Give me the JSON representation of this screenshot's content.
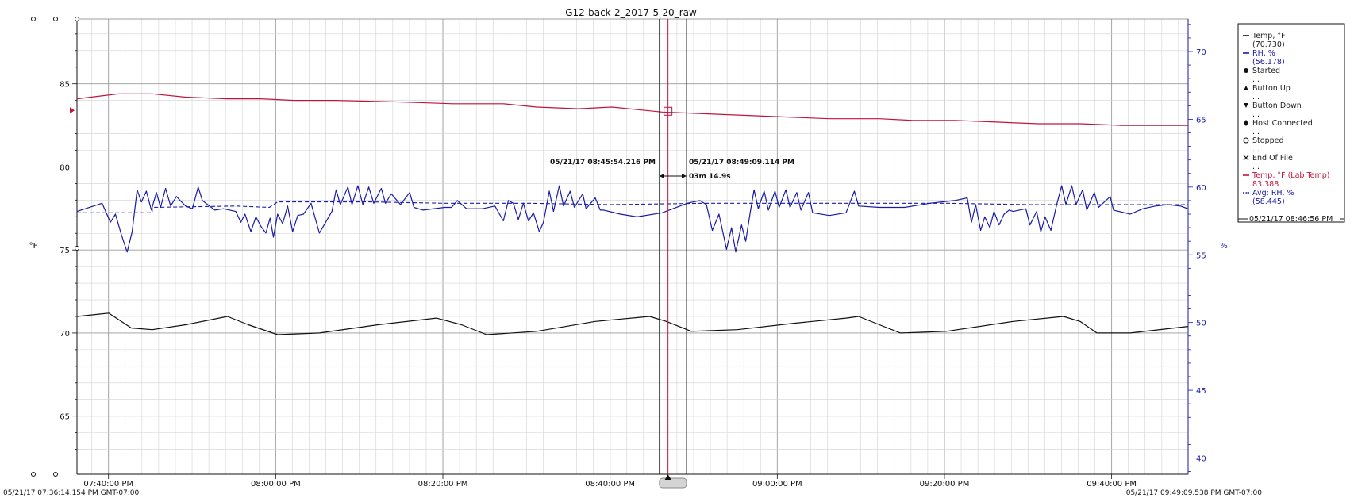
{
  "chart_data": {
    "type": "line",
    "title": "G12-back-2_2017-5-20_raw",
    "left_axis": {
      "label": "°F",
      "range": [
        61.5,
        88.9
      ],
      "ticks": [
        65,
        70,
        75,
        80,
        85
      ]
    },
    "right_axis": {
      "label": "%",
      "range": [
        38.8,
        72.4
      ],
      "ticks": [
        40,
        45,
        50,
        55,
        60,
        65,
        70
      ],
      "color": "#1a1aa8"
    },
    "time_axis": {
      "start_label": "05/21/17 07:36:14.154 PM GMT-07:00",
      "end_label": "05/21/17 09:49:09.538 PM GMT-07:00",
      "ticks": [
        {
          "t": 3.77,
          "label": "07:40:00 PM"
        },
        {
          "t": 23.77,
          "label": "08:00:00 PM"
        },
        {
          "t": 43.77,
          "label": "08:20:00 PM"
        },
        {
          "t": 63.77,
          "label": "08:40:00 PM"
        },
        {
          "t": 83.77,
          "label": "09:00:00 PM"
        },
        {
          "t": 103.77,
          "label": "09:20:00 PM"
        },
        {
          "t": 123.77,
          "label": "09:40:00 PM"
        }
      ],
      "duration_min": 132.92
    },
    "series": [
      {
        "name": "Temp, °F",
        "axis": "left",
        "color": "#111111",
        "points": [
          [
            0,
            71.0
          ],
          [
            3.8,
            71.2
          ],
          [
            6.5,
            70.3
          ],
          [
            9,
            70.2
          ],
          [
            13,
            70.5
          ],
          [
            18,
            71.0
          ],
          [
            20.5,
            70.5
          ],
          [
            24,
            69.9
          ],
          [
            29,
            70.0
          ],
          [
            36,
            70.5
          ],
          [
            43,
            70.9
          ],
          [
            46,
            70.5
          ],
          [
            49,
            69.9
          ],
          [
            55,
            70.1
          ],
          [
            62,
            70.7
          ],
          [
            68.5,
            71.0
          ],
          [
            70.5,
            70.7
          ],
          [
            73.5,
            70.1
          ],
          [
            79,
            70.2
          ],
          [
            86,
            70.6
          ],
          [
            92,
            70.9
          ],
          [
            93.5,
            71.0
          ],
          [
            96,
            70.5
          ],
          [
            98.5,
            70.0
          ],
          [
            104,
            70.1
          ],
          [
            112,
            70.7
          ],
          [
            118,
            71.0
          ],
          [
            120,
            70.7
          ],
          [
            122,
            70.0
          ],
          [
            126,
            70.0
          ],
          [
            132.9,
            70.4
          ]
        ]
      },
      {
        "name": "RH, %",
        "axis": "right",
        "color": "#1a1aa8",
        "points": [
          [
            0,
            58.2
          ],
          [
            3.0,
            58.8
          ],
          [
            4.0,
            57.4
          ],
          [
            4.6,
            58.0
          ],
          [
            5.3,
            56.5
          ],
          [
            6.0,
            55.2
          ],
          [
            6.6,
            56.7
          ],
          [
            7.2,
            59.8
          ],
          [
            7.7,
            58.9
          ],
          [
            8.3,
            59.7
          ],
          [
            8.9,
            58.3
          ],
          [
            9.5,
            59.6
          ],
          [
            10.0,
            58.5
          ],
          [
            10.6,
            59.9
          ],
          [
            11.2,
            58.6
          ],
          [
            11.9,
            59.3
          ],
          [
            12.5,
            58.9
          ],
          [
            13.0,
            58.6
          ],
          [
            13.8,
            58.4
          ],
          [
            14.5,
            60.0
          ],
          [
            15.0,
            59.0
          ],
          [
            16.5,
            58.3
          ],
          [
            17.5,
            58.4
          ],
          [
            19.0,
            58.2
          ],
          [
            19.6,
            57.4
          ],
          [
            20.1,
            58.0
          ],
          [
            20.8,
            56.7
          ],
          [
            21.4,
            57.8
          ],
          [
            22.0,
            57.1
          ],
          [
            22.6,
            56.6
          ],
          [
            23.1,
            57.7
          ],
          [
            23.5,
            56.3
          ],
          [
            24.0,
            58.0
          ],
          [
            24.6,
            57.3
          ],
          [
            25.2,
            58.6
          ],
          [
            25.8,
            56.7
          ],
          [
            26.4,
            57.9
          ],
          [
            27.1,
            58.0
          ],
          [
            28.0,
            58.8
          ],
          [
            29.0,
            56.6
          ],
          [
            30.5,
            58.2
          ],
          [
            31.0,
            59.8
          ],
          [
            31.5,
            58.7
          ],
          [
            32.4,
            60.0
          ],
          [
            32.9,
            58.7
          ],
          [
            33.6,
            60.1
          ],
          [
            34.2,
            58.7
          ],
          [
            34.9,
            60.0
          ],
          [
            35.5,
            58.8
          ],
          [
            36.4,
            59.9
          ],
          [
            36.9,
            58.8
          ],
          [
            37.6,
            59.5
          ],
          [
            38.7,
            58.7
          ],
          [
            39.8,
            59.6
          ],
          [
            40.3,
            58.5
          ],
          [
            41.4,
            58.3
          ],
          [
            44.0,
            58.5
          ],
          [
            44.8,
            58.5
          ],
          [
            45.5,
            59.0
          ],
          [
            46.6,
            58.4
          ],
          [
            48.5,
            58.4
          ],
          [
            50.0,
            58.6
          ],
          [
            51.0,
            57.5
          ],
          [
            51.6,
            59.0
          ],
          [
            52.2,
            58.8
          ],
          [
            52.8,
            57.6
          ],
          [
            53.4,
            58.8
          ],
          [
            54.0,
            57.5
          ],
          [
            54.6,
            58.1
          ],
          [
            55.3,
            56.7
          ],
          [
            55.8,
            57.4
          ],
          [
            56.5,
            59.7
          ],
          [
            57.0,
            58.2
          ],
          [
            57.7,
            60.1
          ],
          [
            58.2,
            58.6
          ],
          [
            59.0,
            59.7
          ],
          [
            59.5,
            58.5
          ],
          [
            60.5,
            59.5
          ],
          [
            60.9,
            58.4
          ],
          [
            62.0,
            59.2
          ],
          [
            62.6,
            58.3
          ],
          [
            63.0,
            58.3
          ],
          [
            65.0,
            58.0
          ],
          [
            67.0,
            57.8
          ],
          [
            70.0,
            58.1
          ],
          [
            73.0,
            58.8
          ],
          [
            74.5,
            59.0
          ],
          [
            75.3,
            58.7
          ],
          [
            76.0,
            56.8
          ],
          [
            76.8,
            58.0
          ],
          [
            77.7,
            55.4
          ],
          [
            78.3,
            57.0
          ],
          [
            78.8,
            55.2
          ],
          [
            79.5,
            57.2
          ],
          [
            80.0,
            56.0
          ],
          [
            80.5,
            58.0
          ],
          [
            81.0,
            59.8
          ],
          [
            81.5,
            58.4
          ],
          [
            82.2,
            59.7
          ],
          [
            82.7,
            58.3
          ],
          [
            83.5,
            59.7
          ],
          [
            84.0,
            58.5
          ],
          [
            84.8,
            59.8
          ],
          [
            85.3,
            58.5
          ],
          [
            86.1,
            59.6
          ],
          [
            86.6,
            58.3
          ],
          [
            87.5,
            59.6
          ],
          [
            88.0,
            58.1
          ],
          [
            90.0,
            57.9
          ],
          [
            92.0,
            58.1
          ],
          [
            93.0,
            59.7
          ],
          [
            93.5,
            58.6
          ],
          [
            96.0,
            58.5
          ],
          [
            99.0,
            58.5
          ],
          [
            102.0,
            58.8
          ],
          [
            105.0,
            59.0
          ],
          [
            106.5,
            59.2
          ],
          [
            107.0,
            57.4
          ],
          [
            107.5,
            58.7
          ],
          [
            108.1,
            56.8
          ],
          [
            108.6,
            57.8
          ],
          [
            109.2,
            57.0
          ],
          [
            109.7,
            58.2
          ],
          [
            110.3,
            57.2
          ],
          [
            110.9,
            58.0
          ],
          [
            111.5,
            58.3
          ],
          [
            112.0,
            58.2
          ],
          [
            113.5,
            58.4
          ],
          [
            114.0,
            57.2
          ],
          [
            114.8,
            58.2
          ],
          [
            115.3,
            56.7
          ],
          [
            115.8,
            57.8
          ],
          [
            116.5,
            56.8
          ],
          [
            117.2,
            58.7
          ],
          [
            117.8,
            60.1
          ],
          [
            118.3,
            58.7
          ],
          [
            119.0,
            60.1
          ],
          [
            119.5,
            58.7
          ],
          [
            120.3,
            59.8
          ],
          [
            120.8,
            58.3
          ],
          [
            121.7,
            59.6
          ],
          [
            122.2,
            58.5
          ],
          [
            123.6,
            59.3
          ],
          [
            124.0,
            58.3
          ],
          [
            126.0,
            58.0
          ],
          [
            127.5,
            58.4
          ],
          [
            129.0,
            58.6
          ],
          [
            130.5,
            58.7
          ],
          [
            132.0,
            58.6
          ],
          [
            132.9,
            58.4
          ]
        ]
      },
      {
        "name": "Temp, °F (Lab Temp)",
        "axis": "left",
        "color": "#c0143c",
        "points": [
          [
            0,
            84.1
          ],
          [
            5,
            84.4
          ],
          [
            9,
            84.4
          ],
          [
            13,
            84.2
          ],
          [
            18,
            84.1
          ],
          [
            22,
            84.1
          ],
          [
            26,
            84.0
          ],
          [
            31,
            84.0
          ],
          [
            39,
            83.9
          ],
          [
            45,
            83.8
          ],
          [
            51,
            83.8
          ],
          [
            55,
            83.6
          ],
          [
            60,
            83.5
          ],
          [
            64,
            83.6
          ],
          [
            68,
            83.4
          ],
          [
            70,
            83.3
          ],
          [
            75,
            83.2
          ],
          [
            80,
            83.1
          ],
          [
            85,
            83.0
          ],
          [
            90,
            82.9
          ],
          [
            96,
            82.9
          ],
          [
            100,
            82.8
          ],
          [
            105,
            82.8
          ],
          [
            110,
            82.7
          ],
          [
            115,
            82.6
          ],
          [
            120,
            82.6
          ],
          [
            125,
            82.5
          ],
          [
            130,
            82.5
          ],
          [
            132.9,
            82.5
          ]
        ]
      },
      {
        "name": "Avg: RH, %",
        "axis": "right",
        "color": "#1a1aa8",
        "dashed": true,
        "points": [
          [
            0,
            58.1
          ],
          [
            9,
            58.1
          ],
          [
            9,
            58.5
          ],
          [
            19,
            58.6
          ],
          [
            23,
            58.5
          ],
          [
            24,
            58.9
          ],
          [
            30,
            58.9
          ],
          [
            35,
            58.9
          ],
          [
            44,
            58.8
          ],
          [
            54,
            58.8
          ],
          [
            64,
            58.7
          ],
          [
            75,
            58.8
          ],
          [
            84,
            58.8
          ],
          [
            94,
            58.8
          ],
          [
            104,
            58.8
          ],
          [
            114,
            58.7
          ],
          [
            124,
            58.7
          ],
          [
            132.9,
            58.7
          ]
        ]
      }
    ],
    "cursors": [
      {
        "t": 69.67,
        "label": "05/21/17 08:45:54.216 PM",
        "color": "#111111"
      },
      {
        "t": 72.92,
        "label": "05/21/17 08:49:09.114 PM",
        "color": "#111111"
      },
      {
        "t": 70.7,
        "label": "05/21/17 08:46:56 PM",
        "color": "#c0143c"
      }
    ],
    "interval_label": "03m 14.9s",
    "legend": [
      {
        "label": "Temp, °F",
        "value": "(70.730)",
        "color": "#111111",
        "marker": "line"
      },
      {
        "label": "RH, %",
        "value": "(56.178)",
        "color": "#1a1aa8",
        "marker": "line"
      },
      {
        "label": "Started",
        "value": "...",
        "color": "#111111",
        "marker": "circle"
      },
      {
        "label": "Button Up",
        "value": "...",
        "color": "#111111",
        "marker": "triangle-up"
      },
      {
        "label": "Button Down",
        "value": "...",
        "color": "#111111",
        "marker": "triangle-down"
      },
      {
        "label": "Host Connected",
        "value": "...",
        "color": "#111111",
        "marker": "diamond"
      },
      {
        "label": "Stopped",
        "value": "...",
        "color": "#111111",
        "marker": "open-circle"
      },
      {
        "label": "End Of File",
        "value": "...",
        "color": "#111111",
        "marker": "x"
      },
      {
        "label": "Temp, °F (Lab Temp)",
        "value": "83.388",
        "color": "#c0143c",
        "marker": "line"
      },
      {
        "label": "Avg: RH, %",
        "value": "(58.445)",
        "color": "#1a1aa8",
        "marker": "dash"
      }
    ],
    "legend_footer": "05/21/17 08:46:56 PM",
    "grid": true,
    "legend_position": "top-right"
  }
}
